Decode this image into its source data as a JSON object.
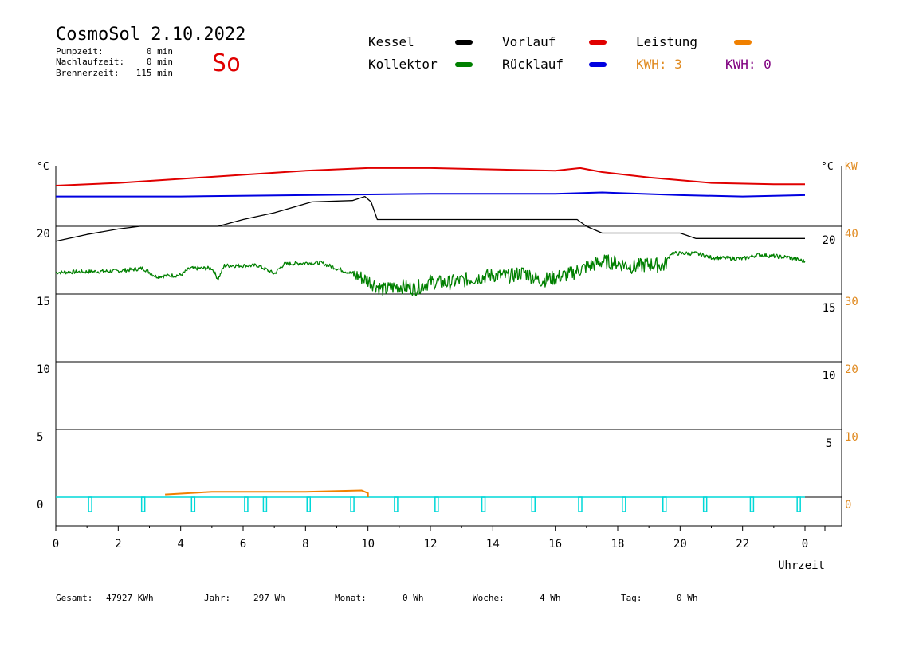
{
  "header": {
    "title": "CosmoSol 2.10.2022",
    "day": "So",
    "stats": [
      {
        "label": "Pumpzeit:",
        "value": "0 min"
      },
      {
        "label": "Nachlaufzeit:",
        "value": "0 min"
      },
      {
        "label": "Brennerzeit:",
        "value": "115 min"
      }
    ]
  },
  "legend": [
    {
      "label": "Kessel",
      "color": "#000000"
    },
    {
      "label": "Vorlauf",
      "color": "#e00000"
    },
    {
      "label": "Leistung",
      "color": "#f08000"
    },
    {
      "label": "Kollektor",
      "color": "#008000"
    },
    {
      "label": "Rücklauf",
      "color": "#0000e0"
    }
  ],
  "kwh": [
    {
      "text": "KWH: 3",
      "color": "#e08a20"
    },
    {
      "text": "KWH: 0",
      "color": "#800080"
    }
  ],
  "footer": [
    {
      "label": "Gesamt:",
      "value": "47927 KWh"
    },
    {
      "label": "Jahr:",
      "value": "297 Wh"
    },
    {
      "label": "Monat:",
      "value": "0 Wh"
    },
    {
      "label": "Woche:",
      "value": "4 Wh"
    },
    {
      "label": "Tag:",
      "value": "0 Wh"
    }
  ],
  "chart_data": {
    "type": "line",
    "left_axis_unit": "°C",
    "right_axis_units": [
      "°C",
      "KW"
    ],
    "x_label": "Uhrzeit",
    "x_ticks": [
      "0",
      "2",
      "4",
      "6",
      "8",
      "10",
      "12",
      "14",
      "16",
      "18",
      "20",
      "22",
      "0"
    ],
    "xlim": [
      0,
      24
    ],
    "ylim": [
      -2,
      25
    ],
    "y_ticks_left": [
      "0",
      "5",
      "10",
      "15",
      "20"
    ],
    "y_ticks_right_temp": [
      "5",
      "10",
      "15",
      "20"
    ],
    "y_ticks_right_kw": [
      "0",
      "10",
      "20",
      "30",
      "40"
    ],
    "grid": "horizontal",
    "series": [
      {
        "name": "Vorlauf",
        "color": "#e00000",
        "points": [
          [
            0,
            23.0
          ],
          [
            2,
            23.2
          ],
          [
            4,
            23.5
          ],
          [
            6,
            23.8
          ],
          [
            8,
            24.1
          ],
          [
            10,
            24.3
          ],
          [
            12,
            24.3
          ],
          [
            14,
            24.2
          ],
          [
            16,
            24.1
          ],
          [
            16.8,
            24.3
          ],
          [
            17.5,
            24.0
          ],
          [
            19,
            23.6
          ],
          [
            21,
            23.2
          ],
          [
            23,
            23.1
          ],
          [
            24,
            23.1
          ]
        ]
      },
      {
        "name": "Rücklauf",
        "color": "#0000e0",
        "points": [
          [
            0,
            22.2
          ],
          [
            4,
            22.2
          ],
          [
            8,
            22.3
          ],
          [
            12,
            22.4
          ],
          [
            16,
            22.4
          ],
          [
            17.5,
            22.5
          ],
          [
            20,
            22.3
          ],
          [
            22,
            22.2
          ],
          [
            24,
            22.3
          ]
        ]
      },
      {
        "name": "Kessel",
        "color": "#000000",
        "points": [
          [
            0,
            18.9
          ],
          [
            1,
            19.4
          ],
          [
            2,
            19.8
          ],
          [
            2.7,
            20.0
          ],
          [
            5.2,
            20.0
          ],
          [
            6,
            20.5
          ],
          [
            7,
            21.0
          ],
          [
            8.2,
            21.8
          ],
          [
            9.5,
            21.9
          ],
          [
            9.9,
            22.2
          ],
          [
            10.1,
            21.8
          ],
          [
            10.3,
            20.5
          ],
          [
            13,
            20.5
          ],
          [
            16.7,
            20.5
          ],
          [
            17,
            20.0
          ],
          [
            17.5,
            19.5
          ],
          [
            20,
            19.5
          ],
          [
            20.5,
            19.1
          ],
          [
            24,
            19.1
          ]
        ]
      },
      {
        "name": "Kollektor",
        "color": "#008000",
        "points": [
          [
            0,
            16.6
          ],
          [
            2,
            16.7
          ],
          [
            2.8,
            16.9
          ],
          [
            3.2,
            16.3
          ],
          [
            4,
            16.4
          ],
          [
            4.3,
            16.9
          ],
          [
            5,
            16.9
          ],
          [
            5.2,
            16.1
          ],
          [
            5.4,
            17.1
          ],
          [
            6.5,
            17.1
          ],
          [
            7,
            16.5
          ],
          [
            7.3,
            17.2
          ],
          [
            8,
            17.3
          ],
          [
            8.5,
            17.3
          ],
          [
            9,
            16.9
          ],
          [
            9.5,
            16.5
          ],
          [
            10,
            16.0
          ],
          [
            10.5,
            15.3
          ],
          [
            11,
            15.6
          ],
          [
            11.5,
            15.4
          ],
          [
            12,
            15.9
          ],
          [
            12.5,
            15.8
          ],
          [
            13,
            16.0
          ],
          [
            13.5,
            16.2
          ],
          [
            14,
            16.4
          ],
          [
            14.5,
            16.3
          ],
          [
            15,
            16.6
          ],
          [
            15.5,
            16.0
          ],
          [
            16,
            16.2
          ],
          [
            16.5,
            16.5
          ],
          [
            17,
            17.0
          ],
          [
            17.5,
            17.4
          ],
          [
            18,
            17.3
          ],
          [
            18.5,
            17.0
          ],
          [
            19,
            17.2
          ],
          [
            19.5,
            17.1
          ],
          [
            19.7,
            18.0
          ],
          [
            20.5,
            18.0
          ],
          [
            21,
            17.7
          ],
          [
            22,
            17.6
          ],
          [
            22.5,
            17.9
          ],
          [
            23.5,
            17.7
          ],
          [
            24,
            17.4
          ]
        ]
      },
      {
        "name": "Leistung",
        "color": "#f08000",
        "points": [
          [
            3.5,
            0.2
          ],
          [
            5,
            0.4
          ],
          [
            6,
            0.4
          ],
          [
            8,
            0.4
          ],
          [
            9.8,
            0.5
          ],
          [
            10,
            0.3
          ],
          [
            10,
            0.0
          ]
        ]
      }
    ],
    "burner_pulses_hours": [
      1.1,
      2.8,
      4.4,
      6.1,
      6.7,
      8.1,
      9.5,
      10.9,
      12.2,
      13.7,
      15.3,
      16.8,
      18.2,
      19.5,
      20.8,
      22.3,
      23.8
    ]
  }
}
